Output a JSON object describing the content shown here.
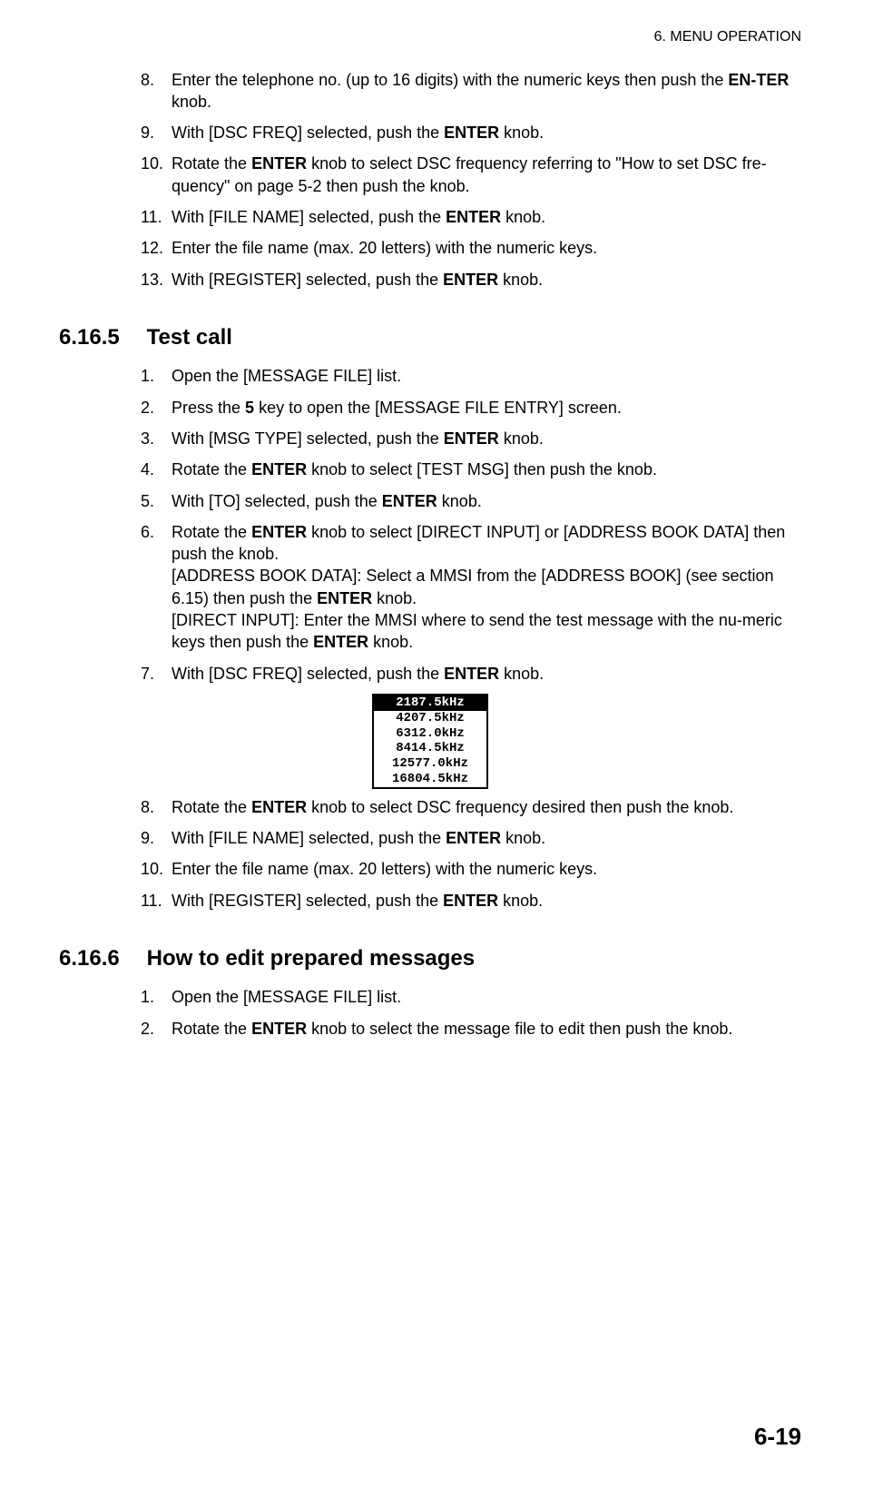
{
  "header": "6.  MENU OPERATION",
  "page_number": "6-19",
  "list_a": [
    {
      "n": "8.",
      "segs": [
        {
          "t": "Enter the telephone no. (up to 16 digits) with the numeric keys then push the "
        },
        {
          "t": "EN-TER",
          "b": 1
        },
        {
          "t": " knob."
        }
      ]
    },
    {
      "n": "9.",
      "segs": [
        {
          "t": "With [DSC FREQ] selected, push the "
        },
        {
          "t": "ENTER",
          "b": 1
        },
        {
          "t": " knob."
        }
      ]
    },
    {
      "n": "10.",
      "segs": [
        {
          "t": "Rotate the "
        },
        {
          "t": "ENTER",
          "b": 1
        },
        {
          "t": " knob to select DSC frequency referring to \"How to set DSC fre-quency\" on page 5-2 then push the knob."
        }
      ]
    },
    {
      "n": "11.",
      "segs": [
        {
          "t": "With [FILE NAME] selected, push the "
        },
        {
          "t": "ENTER",
          "b": 1
        },
        {
          "t": " knob."
        }
      ]
    },
    {
      "n": "12.",
      "segs": [
        {
          "t": "Enter the file name (max. 20 letters) with the numeric keys."
        }
      ]
    },
    {
      "n": "13.",
      "segs": [
        {
          "t": "With [REGISTER] selected, push the "
        },
        {
          "t": "ENTER",
          "b": 1
        },
        {
          "t": " knob."
        }
      ]
    }
  ],
  "section_b": {
    "num": "6.16.5",
    "title": "Test call"
  },
  "list_b": [
    {
      "n": "1.",
      "segs": [
        {
          "t": "Open the [MESSAGE FILE] list."
        }
      ]
    },
    {
      "n": "2.",
      "segs": [
        {
          "t": "Press the "
        },
        {
          "t": "5",
          "b": 1
        },
        {
          "t": " key to open the [MESSAGE FILE ENTRY] screen."
        }
      ]
    },
    {
      "n": "3.",
      "segs": [
        {
          "t": "With [MSG TYPE] selected, push the "
        },
        {
          "t": "ENTER",
          "b": 1
        },
        {
          "t": " knob."
        }
      ]
    },
    {
      "n": "4.",
      "segs": [
        {
          "t": "Rotate the "
        },
        {
          "t": "ENTER",
          "b": 1
        },
        {
          "t": " knob to select [TEST MSG] then push the knob."
        }
      ]
    },
    {
      "n": "5.",
      "segs": [
        {
          "t": "With [TO] selected, push the "
        },
        {
          "t": "ENTER",
          "b": 1
        },
        {
          "t": " knob."
        }
      ]
    },
    {
      "n": "6.",
      "segs": [
        {
          "t": "Rotate the "
        },
        {
          "t": "ENTER",
          "b": 1
        },
        {
          "t": " knob to select [DIRECT INPUT] or [ADDRESS BOOK DATA] then push the knob."
        },
        {
          "br": 1
        },
        {
          "t": "[ADDRESS BOOK DATA]: Select a MMSI from the [ADDRESS BOOK] (see section 6.15) then push the "
        },
        {
          "t": "ENTER",
          "b": 1
        },
        {
          "t": " knob."
        },
        {
          "br": 1
        },
        {
          "t": "[DIRECT INPUT]: Enter the MMSI where to send the test message with the nu-meric keys then push the "
        },
        {
          "t": "ENTER",
          "b": 1
        },
        {
          "t": " knob."
        }
      ]
    },
    {
      "n": "7.",
      "segs": [
        {
          "t": "With [DSC FREQ] selected, push the "
        },
        {
          "t": "ENTER",
          "b": 1
        },
        {
          "t": " knob."
        }
      ]
    }
  ],
  "freq_box": {
    "selected": "2187.5kHz",
    "items": [
      "4207.5kHz",
      "6312.0kHz",
      "8414.5kHz",
      "12577.0kHz",
      "16804.5kHz"
    ],
    "colors": {
      "border": "#000000",
      "sel_bg": "#000000",
      "sel_fg": "#ffffff",
      "fg": "#000000"
    }
  },
  "list_b2": [
    {
      "n": "8.",
      "segs": [
        {
          "t": "Rotate the "
        },
        {
          "t": "ENTER",
          "b": 1
        },
        {
          "t": " knob to select DSC frequency desired then push the knob."
        }
      ]
    },
    {
      "n": "9.",
      "segs": [
        {
          "t": "With [FILE NAME] selected, push the "
        },
        {
          "t": "ENTER",
          "b": 1
        },
        {
          "t": " knob."
        }
      ]
    },
    {
      "n": "10.",
      "segs": [
        {
          "t": "Enter the file name (max. 20 letters) with the numeric keys."
        }
      ]
    },
    {
      "n": "11.",
      "segs": [
        {
          "t": "With [REGISTER] selected, push the "
        },
        {
          "t": "ENTER",
          "b": 1
        },
        {
          "t": " knob."
        }
      ]
    }
  ],
  "section_c": {
    "num": "6.16.6",
    "title": "How to edit prepared messages"
  },
  "list_c": [
    {
      "n": "1.",
      "segs": [
        {
          "t": "Open the [MESSAGE FILE] list."
        }
      ]
    },
    {
      "n": "2.",
      "segs": [
        {
          "t": "Rotate the "
        },
        {
          "t": "ENTER",
          "b": 1
        },
        {
          "t": " knob to select the message file to edit then push the knob."
        }
      ]
    }
  ]
}
